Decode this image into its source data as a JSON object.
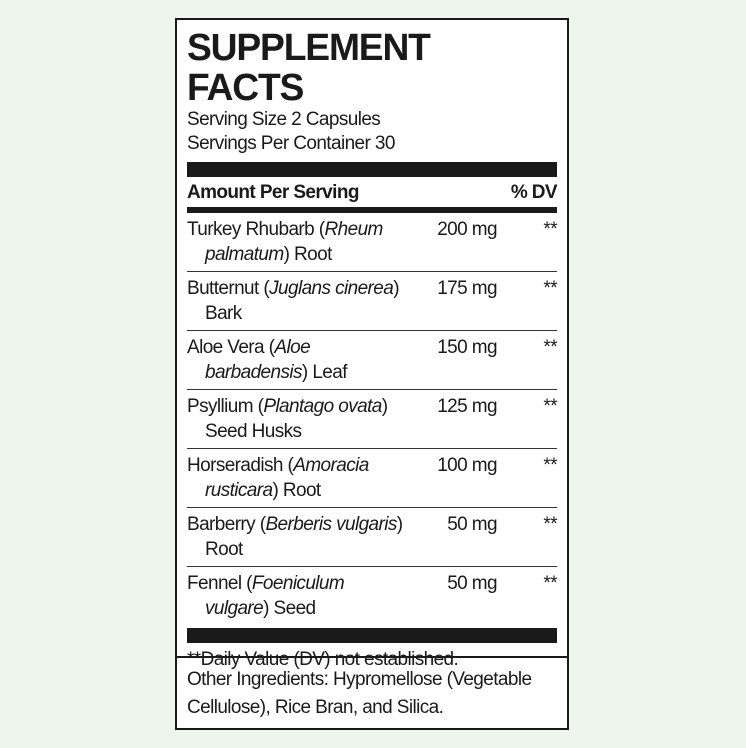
{
  "title": "SUPPLEMENT FACTS",
  "serving_size": "Serving Size 2 Capsules",
  "servings_per_container": "Servings Per Container 30",
  "header": {
    "amount": "Amount Per Serving",
    "dv": "% DV"
  },
  "rows": [
    {
      "name": "Turkey Rhubarb",
      "latin": "Rheum palmatum",
      "part": "Root",
      "amount": "200 mg",
      "dv": "**"
    },
    {
      "name": "Butternut",
      "latin": "Juglans cinerea",
      "part": "Bark",
      "amount": "175 mg",
      "dv": "**"
    },
    {
      "name": "Aloe Vera",
      "latin": "Aloe barbadensis",
      "part": "Leaf",
      "amount": "150 mg",
      "dv": "**"
    },
    {
      "name": "Psyllium",
      "latin": "Plantago ovata",
      "part": "Seed Husks",
      "amount": "125 mg",
      "dv": "**"
    },
    {
      "name": "Horseradish",
      "latin": "Amoracia rusticara",
      "part": "Root",
      "amount": "100 mg",
      "dv": "**"
    },
    {
      "name": "Barberry",
      "latin": "Berberis vulgaris",
      "part": "Root",
      "amount": "50 mg",
      "dv": "**"
    },
    {
      "name": "Fennel",
      "latin": "Foeniculum vulgare",
      "part": "Seed",
      "amount": "50 mg",
      "dv": "**"
    }
  ],
  "footnote": "**Daily Value (DV) not established.",
  "other_ingredients": "Other Ingredients: Hypromellose (Vegetable Cellulose), Rice Bran, and Silica."
}
